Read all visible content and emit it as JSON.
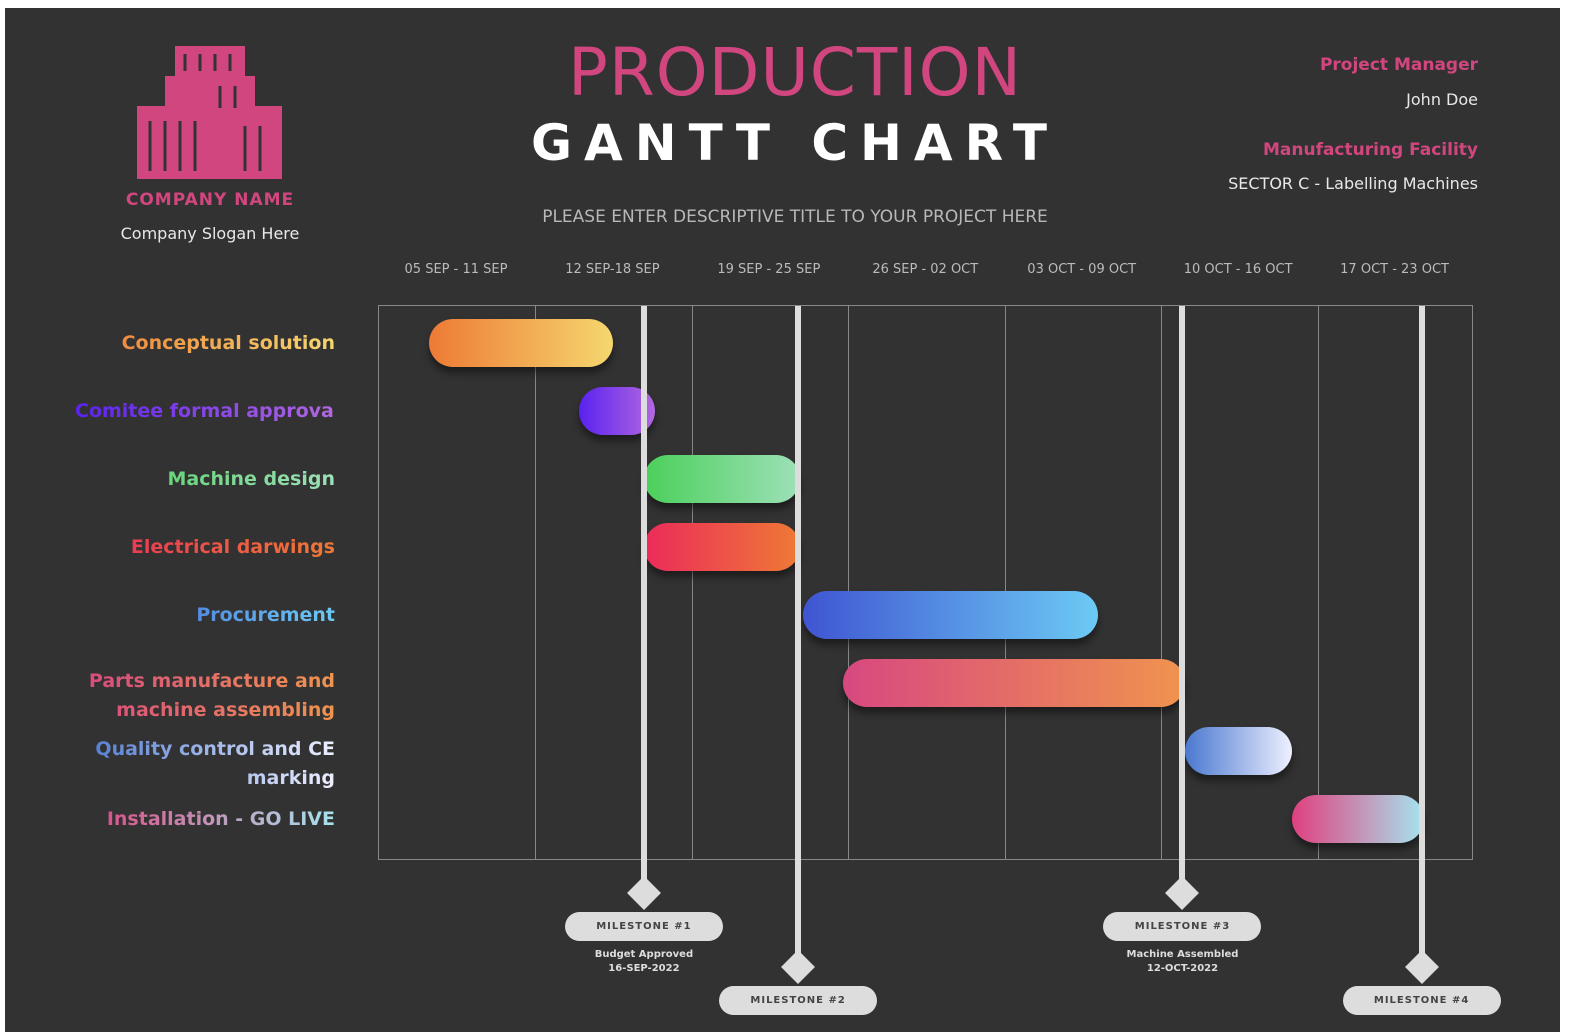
{
  "header": {
    "company_name": "COMPANY NAME",
    "slogan": "Company Slogan Here",
    "title_line1": "PRODUCTION",
    "title_line2": "GANTT CHART",
    "subtitle": "PLEASE ENTER DESCRIPTIVE TITLE TO YOUR PROJECT HERE",
    "pm_label": "Project Manager",
    "pm_value": "John Doe",
    "facility_label": "Manufacturing Facility",
    "facility_value": "SECTOR C - Labelling Machines"
  },
  "colors": {
    "background": "#333233",
    "accent": "#d2467f"
  },
  "chart_data": {
    "type": "gantt",
    "x_unit": "days from 05 SEP 2022",
    "weeks": [
      "05 SEP - 11 SEP",
      "12 SEP-18 SEP",
      "19 SEP - 25 SEP",
      "26 SEP - 02 OCT",
      "03 OCT - 09 OCT",
      "10 OCT - 16 OCT",
      "17 OCT - 23 OCT"
    ],
    "tasks": [
      {
        "label": "Conceptual solution",
        "start": 2.3,
        "end": 10.5,
        "colors": [
          "#ee7a35",
          "#f5d76e"
        ]
      },
      {
        "label": "Comitee formal approval",
        "start": 9.0,
        "end": 12.4,
        "colors": [
          "#5a22f0",
          "#b268e0"
        ]
      },
      {
        "label": "Machine design",
        "start": 11.9,
        "end": 18.9,
        "colors": [
          "#4bd05a",
          "#9de0b8"
        ]
      },
      {
        "label": "Electrical darwings",
        "start": 11.9,
        "end": 18.9,
        "colors": [
          "#ec2a5a",
          "#ee7a35"
        ]
      },
      {
        "label": "Procurement",
        "start": 19.0,
        "end": 32.2,
        "colors": [
          "#3f55d2",
          "#6ccaf4"
        ]
      },
      {
        "label": "Parts manufacture and machine assembling",
        "start": 20.8,
        "end": 36.1,
        "colors": [
          "#d84880",
          "#f0944e"
        ]
      },
      {
        "label": "Quality control and CE marking",
        "start": 36.1,
        "end": 40.9,
        "colors": [
          "#4a78d0",
          "#eef0ff"
        ]
      },
      {
        "label": "Installation - GO LIVE",
        "start": 40.9,
        "end": 46.8,
        "colors": [
          "#e0407e",
          "#a6e4ee"
        ]
      }
    ],
    "milestones": [
      {
        "label": "MILESTONE #1",
        "desc": "Budget Approved",
        "date": "16-SEP-2022",
        "day": 11.9,
        "level": 1
      },
      {
        "label": "MILESTONE #2",
        "desc": "",
        "date": "",
        "day": 18.8,
        "level": 2
      },
      {
        "label": "MILESTONE #3",
        "desc": "Machine Assembled",
        "date": "12-OCT-2022",
        "day": 36.0,
        "level": 1
      },
      {
        "label": "MILESTONE #4",
        "desc": "",
        "date": "",
        "day": 46.7,
        "level": 2
      }
    ]
  }
}
